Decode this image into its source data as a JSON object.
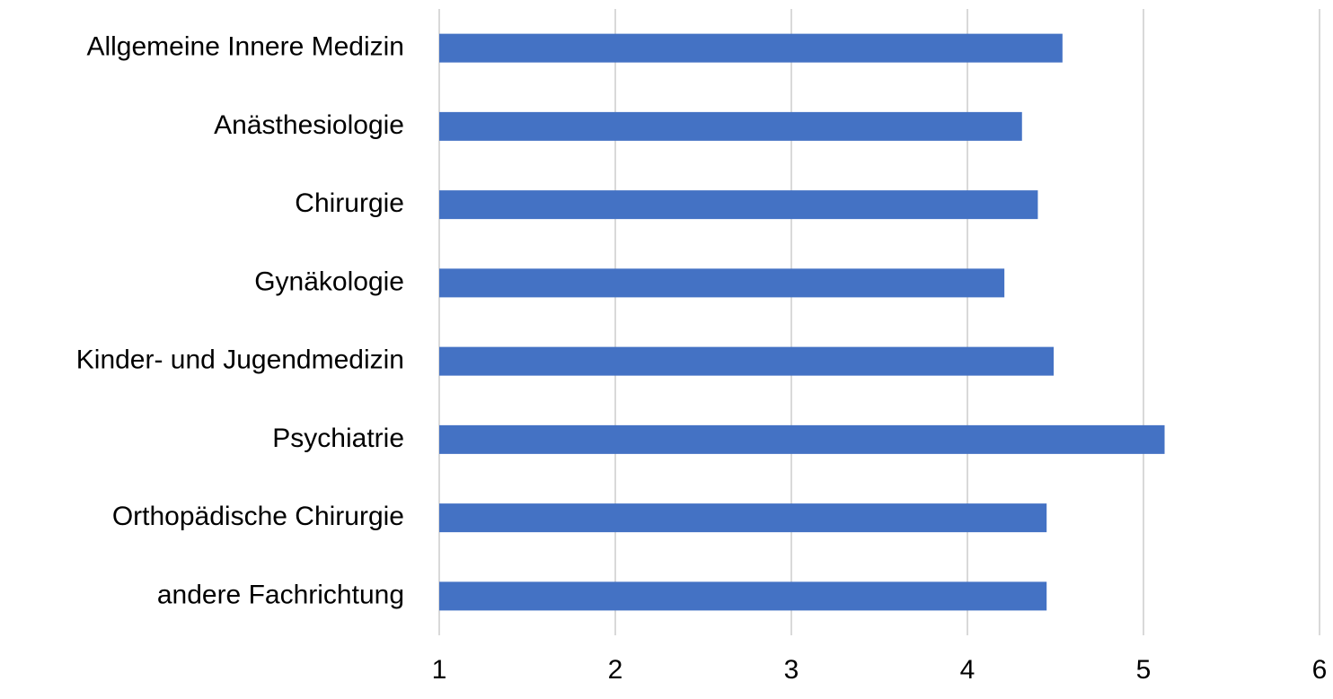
{
  "chart_data": {
    "type": "barh",
    "categories": [
      "Allgemeine Innere Medizin",
      "Anästhesiologie",
      "Chirurgie",
      "Gynäkologie",
      "Kinder- und Jugendmedizin",
      "Psychiatrie",
      "Orthopädische Chirurgie",
      "andere Fachrichtung"
    ],
    "values": [
      4.54,
      4.31,
      4.4,
      4.21,
      4.49,
      5.12,
      4.45,
      4.45
    ],
    "color": "#4472c4",
    "xlim": [
      1,
      6
    ],
    "xticks": [
      1,
      2,
      3,
      4,
      5,
      6
    ],
    "grid": true
  }
}
